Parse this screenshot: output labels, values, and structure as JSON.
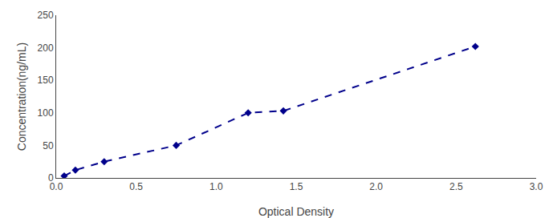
{
  "chart_data": {
    "type": "line",
    "xlabel": "Optical Density",
    "ylabel": "Concentration(ng/mL)",
    "x": [
      0.05,
      0.12,
      0.3,
      0.75,
      1.2,
      1.42,
      2.62
    ],
    "values": [
      3,
      12,
      25,
      50,
      100,
      103,
      202
    ],
    "color": "#00008B",
    "marker": "diamond",
    "line_style": "dashed",
    "xlim": [
      0,
      3
    ],
    "ylim": [
      0,
      250
    ],
    "xticks": [
      {
        "value": 0,
        "label": "0.0"
      },
      {
        "value": 0.5,
        "label": "0.5"
      },
      {
        "value": 1,
        "label": "1.0"
      },
      {
        "value": 1.5,
        "label": "1.5"
      },
      {
        "value": 2,
        "label": "2.0"
      },
      {
        "value": 2.5,
        "label": "2.5"
      },
      {
        "value": 3,
        "label": "3.0"
      }
    ],
    "yticks": [
      0,
      50,
      100,
      150,
      200,
      250
    ],
    "grid": false
  }
}
